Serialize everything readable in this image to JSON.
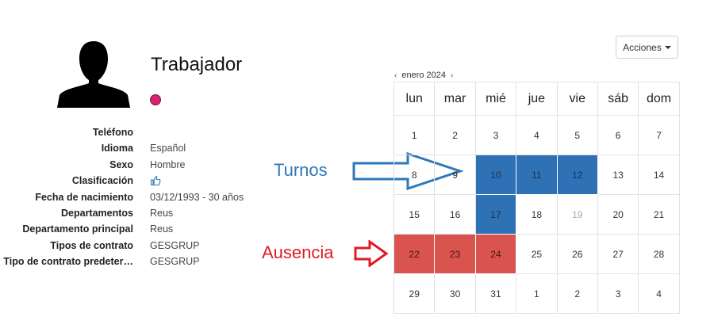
{
  "worker": {
    "name": "Trabajador",
    "status_color": "#d6246e",
    "avatar_icon": "person-silhouette-icon"
  },
  "details": [
    {
      "label": "Teléfono",
      "value": ""
    },
    {
      "label": "Idioma",
      "value": "Español"
    },
    {
      "label": "Sexo",
      "value": "Hombre"
    },
    {
      "label": "Clasificación",
      "value": "",
      "icon": "thumbs-up-icon"
    },
    {
      "label": "Fecha de nacimiento",
      "value": "03/12/1993 - 30 años"
    },
    {
      "label": "Departamentos",
      "value": "Reus"
    },
    {
      "label": "Departamento principal",
      "value": "Reus"
    },
    {
      "label": "Tipos de contrato",
      "value": "GESGRUP"
    },
    {
      "label": "Tipo de contrato predeter…",
      "value": "GESGRUP"
    }
  ],
  "annotations": {
    "turnos": "Turnos",
    "ausencia": "Ausencia",
    "turnos_color": "#2e78b7",
    "ausencia_color": "#e01b24"
  },
  "actions": {
    "label": "Acciones"
  },
  "calendar": {
    "month_label": "enero 2024",
    "prev_icon": "chevron-left-icon",
    "next_icon": "chevron-right-icon",
    "weekdays": [
      "lun",
      "mar",
      "mié",
      "jue",
      "vie",
      "sáb",
      "dom"
    ],
    "turno_color": "#2f71b5",
    "ausencia_color": "#d9534f",
    "weeks": [
      [
        {
          "day": "1"
        },
        {
          "day": "2"
        },
        {
          "day": "3"
        },
        {
          "day": "4"
        },
        {
          "day": "5"
        },
        {
          "day": "6"
        },
        {
          "day": "7"
        }
      ],
      [
        {
          "day": "8"
        },
        {
          "day": "9"
        },
        {
          "day": "10",
          "type": "turno"
        },
        {
          "day": "11",
          "type": "turno"
        },
        {
          "day": "12",
          "type": "turno"
        },
        {
          "day": "13"
        },
        {
          "day": "14"
        }
      ],
      [
        {
          "day": "15"
        },
        {
          "day": "16"
        },
        {
          "day": "17",
          "type": "turno"
        },
        {
          "day": "18"
        },
        {
          "day": "19",
          "type": "muted"
        },
        {
          "day": "20"
        },
        {
          "day": "21"
        }
      ],
      [
        {
          "day": "22",
          "type": "ausencia"
        },
        {
          "day": "23",
          "type": "ausencia"
        },
        {
          "day": "24",
          "type": "ausencia"
        },
        {
          "day": "25"
        },
        {
          "day": "26"
        },
        {
          "day": "27"
        },
        {
          "day": "28"
        }
      ],
      [
        {
          "day": "29"
        },
        {
          "day": "30"
        },
        {
          "day": "31"
        },
        {
          "day": "1"
        },
        {
          "day": "2"
        },
        {
          "day": "3"
        },
        {
          "day": "4"
        }
      ]
    ]
  }
}
